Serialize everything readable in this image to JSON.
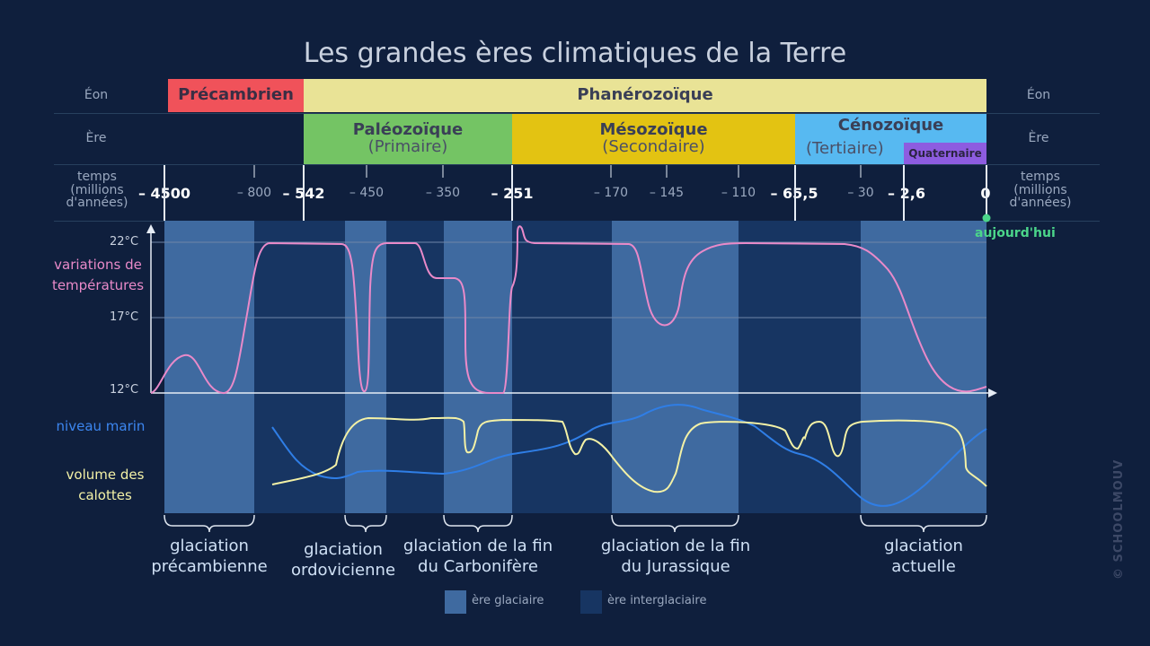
{
  "title": "Les grandes ères climatiques de la Terre",
  "row_labels": {
    "eon_left": "Éon",
    "eon_right": "Éon",
    "era_left": "Ère",
    "era_right": "Ère",
    "time_left": "temps\n(millions\nd'années)",
    "time_right": "temps\n(millions\nd'années)"
  },
  "eons": {
    "precambrien": "Précambrien",
    "phanerozoique": "Phanérozoïque"
  },
  "eras": {
    "paleozoique": "Paléozoïque",
    "paleozoique_sub": "(Primaire)",
    "mesozoique": "Mésozoïque",
    "mesozoique_sub": "(Secondaire)",
    "cenozoique": "Cénozoïque",
    "cenozoique_sub": "(Tertiaire)",
    "quaternaire": "Quaternaire"
  },
  "ticks": {
    "t4500": "– 4500",
    "t800": "– 800",
    "t542": "– 542",
    "t450": "– 450",
    "t350": "– 350",
    "t251": "– 251",
    "t170": "– 170",
    "t145": "– 145",
    "t110": "– 110",
    "t65": "– 65,5",
    "t30": "– 30",
    "t2": "– 2,6",
    "t0": "0"
  },
  "today": "aujourd'hui",
  "temperature": {
    "t22": "22°C",
    "t17": "17°C",
    "t12": "12°C"
  },
  "side_labels": {
    "temperature": "variations de\ntempératures",
    "sea_level": "niveau marin",
    "ice": "volume des\ncalottes"
  },
  "glaciations": {
    "precambrienne": "glaciation\nprécambienne",
    "ordovicienne": "glaciation\nordovicienne",
    "carbonifere": "glaciation de la fin\ndu Carbonifère",
    "jurassique": "glaciation de la fin\ndu Jurassique",
    "actuelle": "glaciation\nactuelle"
  },
  "legend": {
    "glacial": "ère glaciaire",
    "interglacial": "ère interglaciaire"
  },
  "watermark": "© SCHOOLMOUV",
  "colors": {
    "precambrien": "#f0525a",
    "phanerozoique": "#e9e396",
    "paleozoique": "#74c464",
    "mesozoique": "#e3c312",
    "cenozoique": "#57b9f1",
    "quaternaire": "#8d5ce0",
    "temperature": "#e98ac9",
    "sea_level": "#2f7ee6",
    "ice": "#f3f1a6",
    "glacial": "#3f6aa0",
    "interglacial": "#173562",
    "today": "#4bd58a"
  }
}
